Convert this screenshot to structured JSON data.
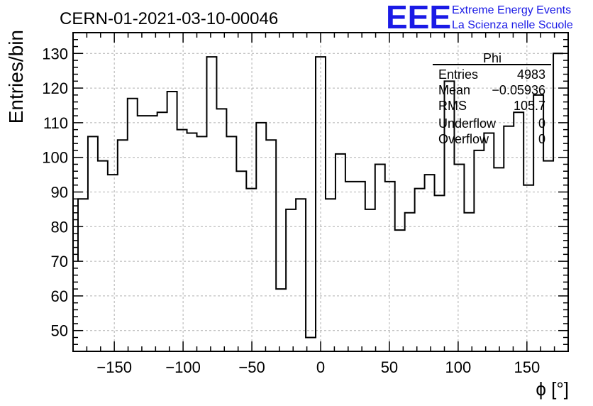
{
  "header": {
    "run_title": "CERN-01-2021-03-10-00046",
    "logo_text": "EEE",
    "logo_line1": "Extreme Energy Events",
    "logo_line2": "La Scienza nelle Scuole",
    "logo_color": "#1a1ae6"
  },
  "stats_box": {
    "title": "Phi",
    "rows": [
      {
        "label": "Entries",
        "value": "4983"
      },
      {
        "label": "Mean",
        "value": "−0.05936"
      },
      {
        "label": "RMS",
        "value": "105.7"
      },
      {
        "label": "Underflow",
        "value": "0"
      },
      {
        "label": "Overflow",
        "value": "0"
      }
    ]
  },
  "chart_data": {
    "type": "histogram",
    "title": "CERN-01-2021-03-10-00046",
    "xlabel": "ϕ [°]",
    "ylabel": "Entries/bin",
    "xlim": [
      -180,
      180
    ],
    "ylim": [
      44,
      136
    ],
    "bin_width": 7.2,
    "x_ticks": [
      -150,
      -100,
      -50,
      0,
      50,
      100,
      150
    ],
    "x_tick_labels": [
      "−150",
      "−100",
      "−50",
      "0",
      "50",
      "100",
      "150"
    ],
    "y_ticks": [
      50,
      60,
      70,
      80,
      90,
      100,
      110,
      120,
      130
    ],
    "y_tick_labels": [
      "50",
      "60",
      "70",
      "80",
      "90",
      "100",
      "110",
      "120",
      "130"
    ],
    "grid": true,
    "bin_lower_edges": [
      -176.4,
      -169.2,
      -162,
      -154.8,
      -147.6,
      -140.4,
      -133.2,
      -126,
      -118.8,
      -111.6,
      -104.4,
      -97.2,
      -90,
      -82.8,
      -75.6,
      -68.4,
      -61.2,
      -54,
      -46.8,
      -39.6,
      -32.4,
      -25.2,
      -18,
      -10.8,
      -3.6,
      3.6,
      10.8,
      18,
      25.2,
      32.4,
      39.6,
      46.8,
      54,
      61.2,
      68.4,
      75.6,
      82.8,
      90,
      97.2,
      104.4,
      111.6,
      118.8,
      126,
      133.2,
      140.4,
      147.6,
      154.8,
      162,
      169.2
    ],
    "values": [
      88,
      106,
      99,
      95,
      105,
      117,
      112,
      112,
      113,
      119,
      108,
      107,
      106,
      129,
      114,
      106,
      96,
      91,
      110,
      105,
      62,
      85,
      88,
      48,
      129,
      88,
      101,
      93,
      93,
      85,
      98,
      93,
      79,
      84,
      91,
      95,
      89,
      122,
      98,
      84,
      102,
      107,
      97,
      109,
      113,
      92,
      118,
      99,
      130
    ],
    "first_bin_left_value": 70,
    "line_color": "#000000"
  }
}
